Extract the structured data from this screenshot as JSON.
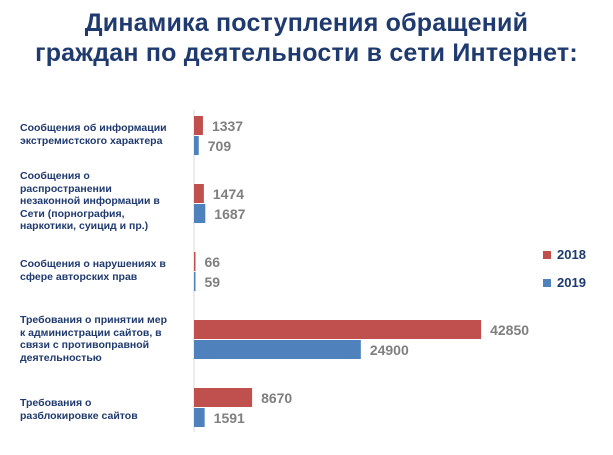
{
  "title_line1": "Динамика поступления обращений",
  "title_line2": "граждан по деятельности в сети Интернет:",
  "colors": {
    "s2018": "#c0504d",
    "s2019": "#4f81bd",
    "value_text": "#7f7f7f",
    "text": "#1f3a6e"
  },
  "chart_data": {
    "type": "bar",
    "orientation": "horizontal",
    "categories": [
      "Сообщения об информации экстремистского характера",
      "Сообщения о распространении незаконной информации в Сети (порнография, наркотики, суицид и пр.)",
      "Сообщения о нарушениях в сфере авторских прав",
      "Требования о принятии мер к администрации сайтов, в связи с противоправной деятельностью",
      "Требования о разблокировке сайтов"
    ],
    "category_lines": [
      [
        "Сообщения об информации",
        "экстремистского характера"
      ],
      [
        "Сообщения о",
        "распространении",
        "незаконной информации в",
        "Сети (порнография,",
        "наркотики, суицид и пр.)"
      ],
      [
        "Сообщения о нарушениях в",
        "сфере авторских прав"
      ],
      [
        "Требования о принятии мер",
        "к администрации сайтов, в",
        "связи с противоправной",
        "деятельностью"
      ],
      [
        "Требования о",
        "разблокировке сайтов"
      ]
    ],
    "series": [
      {
        "name": "2018",
        "values": [
          1337,
          1474,
          66,
          42850,
          8670
        ]
      },
      {
        "name": "2019",
        "values": [
          709,
          1687,
          59,
          24900,
          1591
        ]
      }
    ],
    "xlim": [
      0,
      50000
    ],
    "grid": false,
    "legend_position": "right"
  }
}
